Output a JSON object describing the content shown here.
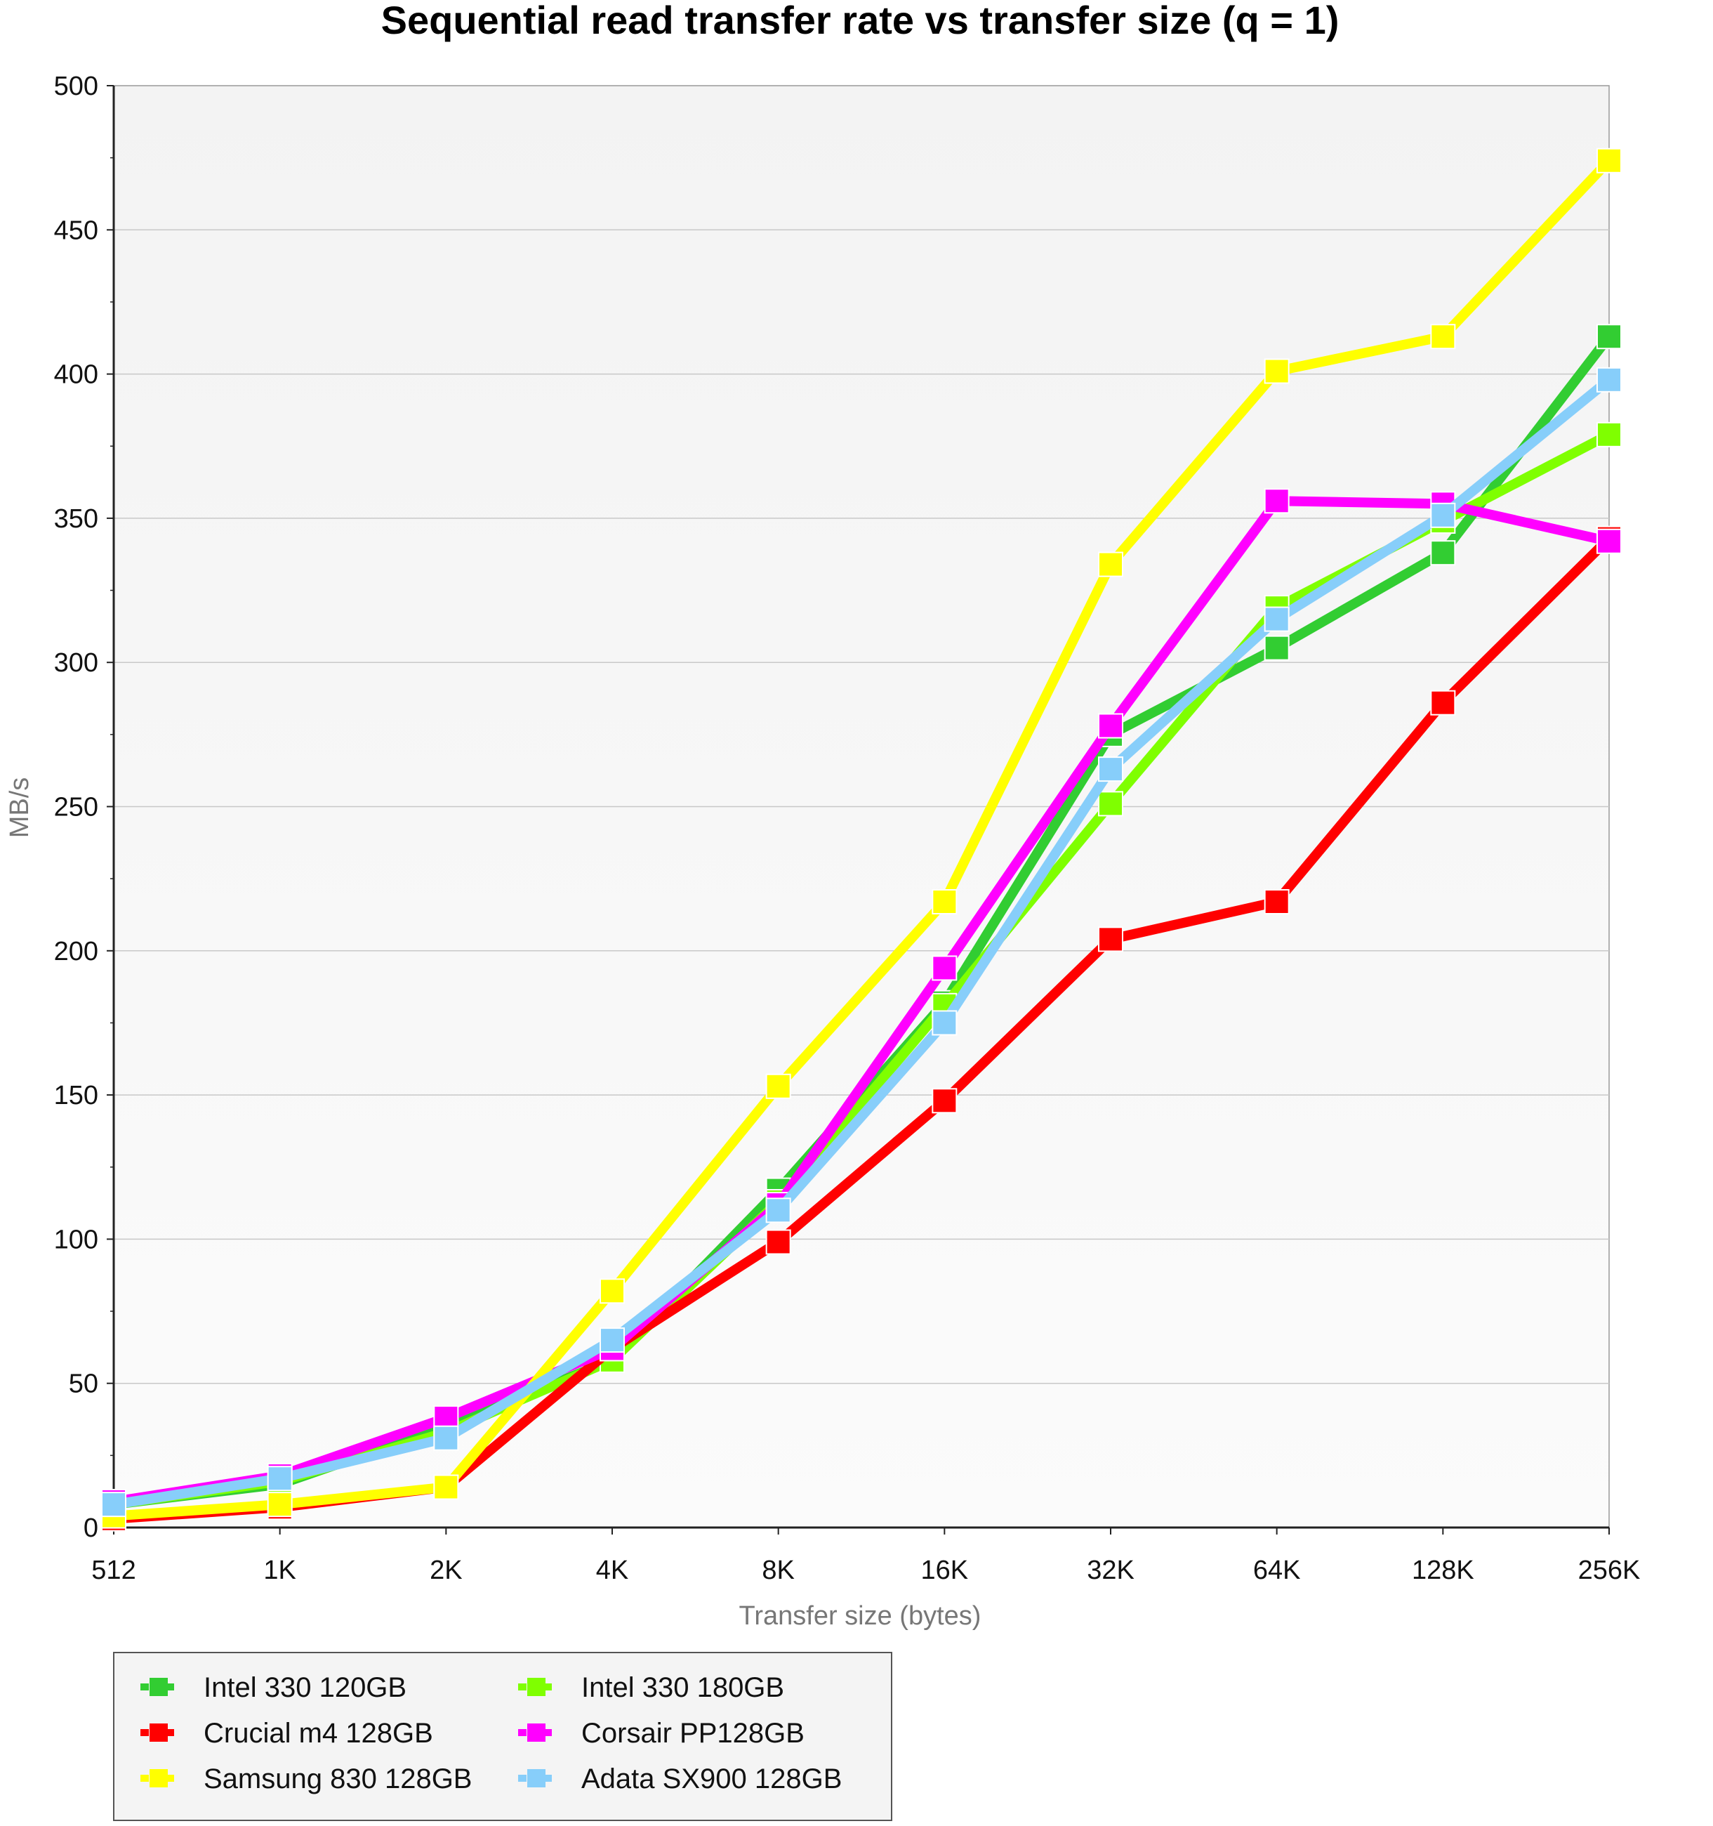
{
  "chart_data": {
    "type": "line",
    "title": "Sequential read transfer rate vs transfer size (q = 1)",
    "xlabel": "Transfer size (bytes)",
    "ylabel": "MB/s",
    "ylim": [
      0,
      500
    ],
    "yticks": [
      "0",
      "50",
      "100",
      "150",
      "200",
      "250",
      "300",
      "350",
      "400",
      "450",
      "500"
    ],
    "categories": [
      "512",
      "1K",
      "2K",
      "4K",
      "8K",
      "16K",
      "32K",
      "64K",
      "128K",
      "256K"
    ],
    "grid": true,
    "legend_position": "bottom-left",
    "series": [
      {
        "name": "Intel 330 120GB",
        "color": "#32cd32",
        "values": [
          8,
          15,
          35,
          58,
          117,
          182,
          275,
          305,
          338,
          413
        ]
      },
      {
        "name": "Intel 330 180GB",
        "color": "#7fff00",
        "values": [
          8,
          16,
          33,
          58,
          113,
          181,
          251,
          319,
          349,
          379
        ]
      },
      {
        "name": "Crucial m4 128GB",
        "color": "#ff0000",
        "values": [
          3,
          7,
          14,
          62,
          99,
          148,
          204,
          217,
          286,
          343
        ]
      },
      {
        "name": "Corsair PP128GB",
        "color": "#ff00ff",
        "values": [
          9,
          18,
          38,
          62,
          112,
          194,
          278,
          356,
          355,
          342
        ]
      },
      {
        "name": "Samsung 830 128GB",
        "color": "#ffff00",
        "values": [
          4,
          8,
          14,
          82,
          153,
          217,
          334,
          401,
          413,
          474
        ]
      },
      {
        "name": "Adata SX900 128GB",
        "color": "#87cefa",
        "values": [
          8,
          17,
          31,
          65,
          110,
          175,
          263,
          315,
          351,
          398
        ]
      }
    ]
  }
}
